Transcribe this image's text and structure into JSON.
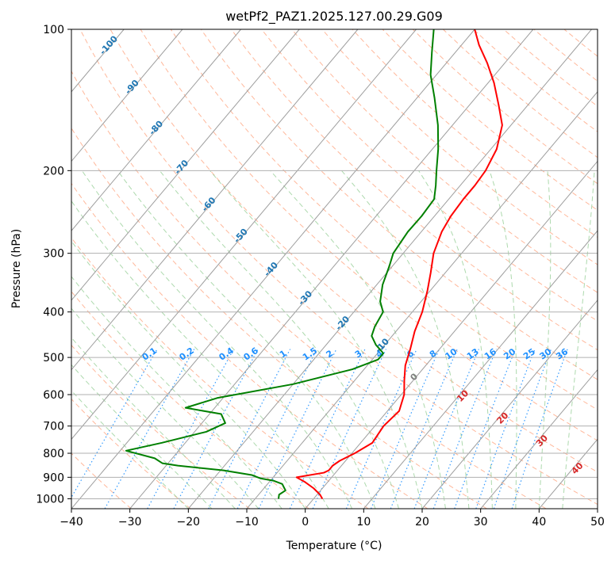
{
  "chart_data": {
    "type": "line",
    "subtype": "skew-t log-p",
    "title": "wetPf2_PAZ1.2025.127.00.29.G09",
    "xlabel": "Temperature (°C)",
    "ylabel": "Pressure (hPa)",
    "xlim": [
      -40,
      50
    ],
    "ylim": [
      1050,
      100
    ],
    "yscale": "log",
    "grid": true,
    "x_ticks": [
      -40,
      -30,
      -20,
      -10,
      0,
      10,
      20,
      30,
      40,
      50
    ],
    "y_ticks": [
      1000,
      900,
      800,
      700,
      600,
      500,
      400,
      300,
      200,
      100
    ],
    "series": [
      {
        "name": "",
        "role": "temperature",
        "color": "#ff0000",
        "points": [
          [
            1.5,
            1000
          ],
          [
            0.5,
            980
          ],
          [
            -1.5,
            950
          ],
          [
            -4,
            920
          ],
          [
            -6,
            900
          ],
          [
            -2,
            880
          ],
          [
            -1.5,
            870
          ],
          [
            -1.5,
            850
          ],
          [
            -1,
            830
          ],
          [
            0.5,
            800
          ],
          [
            2,
            760
          ],
          [
            1.5,
            700
          ],
          [
            2,
            650
          ],
          [
            0.5,
            600
          ],
          [
            -1.5,
            560
          ],
          [
            -3.5,
            520
          ],
          [
            -5,
            480
          ],
          [
            -6.8,
            440
          ],
          [
            -8.3,
            400
          ],
          [
            -10.5,
            360
          ],
          [
            -12.5,
            330
          ],
          [
            -14.8,
            300
          ],
          [
            -16.5,
            270
          ],
          [
            -17.2,
            250
          ],
          [
            -17.5,
            230
          ],
          [
            -17.5,
            215
          ],
          [
            -17.8,
            200
          ],
          [
            -19,
            180
          ],
          [
            -21.5,
            160
          ],
          [
            -25,
            145
          ],
          [
            -29,
            130
          ],
          [
            -33,
            118
          ],
          [
            -37,
            108
          ],
          [
            -40,
            100
          ]
        ]
      },
      {
        "name": "",
        "role": "dewpoint",
        "color": "#008000",
        "points": [
          [
            -6,
            1000
          ],
          [
            -6.5,
            980
          ],
          [
            -6,
            960
          ],
          [
            -6.5,
            950
          ],
          [
            -7.5,
            930
          ],
          [
            -9.5,
            915
          ],
          [
            -12,
            905
          ],
          [
            -14,
            890
          ],
          [
            -19.5,
            870
          ],
          [
            -28,
            850
          ],
          [
            -31,
            840
          ],
          [
            -33,
            820
          ],
          [
            -39,
            790
          ],
          [
            -34,
            760
          ],
          [
            -28,
            720
          ],
          [
            -26,
            690
          ],
          [
            -28,
            660
          ],
          [
            -35,
            640
          ],
          [
            -31,
            610
          ],
          [
            -20,
            570
          ],
          [
            -12,
            530
          ],
          [
            -9,
            505
          ],
          [
            -9,
            490
          ],
          [
            -11.5,
            470
          ],
          [
            -13.5,
            450
          ],
          [
            -14.3,
            430
          ],
          [
            -15,
            400
          ],
          [
            -17,
            380
          ],
          [
            -19,
            350
          ],
          [
            -20.5,
            320
          ],
          [
            -21.7,
            300
          ],
          [
            -22.3,
            270
          ],
          [
            -22.2,
            250
          ],
          [
            -22.5,
            230
          ],
          [
            -24.2,
            215
          ],
          [
            -26.2,
            200
          ],
          [
            -29,
            180
          ],
          [
            -32.5,
            160
          ],
          [
            -37,
            140
          ],
          [
            -41,
            125
          ],
          [
            -44,
            112
          ],
          [
            -47,
            100
          ]
        ]
      }
    ],
    "mixing_ratio_labels": [
      "0.1",
      "0.2",
      "0.4",
      "0.6",
      "1",
      "1.5",
      "2",
      "3",
      "4",
      "6",
      "8",
      "10",
      "13",
      "16",
      "20",
      "25",
      "30",
      "36"
    ],
    "dry_adiabat_labels": [
      "-100",
      "-90",
      "-80",
      "-70",
      "-60",
      "-50",
      "-40",
      "-30",
      "-20",
      "-10",
      "0"
    ],
    "moist_adiabat_labels": [
      "10",
      "20",
      "30",
      "40"
    ]
  }
}
